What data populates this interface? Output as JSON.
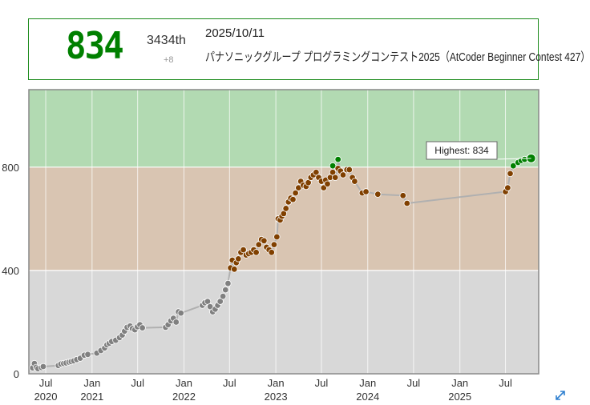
{
  "header": {
    "rating": "834",
    "place": "3434th",
    "diff": "+8",
    "date": "2025/10/11",
    "contest": "パナソニックグループ プログラミングコンテスト2025（AtCoder Beginner Contest 427）"
  },
  "chart_data": {
    "type": "line",
    "title": "",
    "ylim": [
      0,
      1100
    ],
    "y_ticks": [
      0,
      400,
      800
    ],
    "x_range": [
      "2020-04-25",
      "2025-11-10"
    ],
    "x_ticks": [
      {
        "date": "2020-07-01",
        "label": "Jul",
        "year": "2020"
      },
      {
        "date": "2021-01-01",
        "label": "Jan",
        "year": "2021"
      },
      {
        "date": "2021-07-01",
        "label": "Jul",
        "year": ""
      },
      {
        "date": "2022-01-01",
        "label": "Jan",
        "year": "2022"
      },
      {
        "date": "2022-07-01",
        "label": "Jul",
        "year": ""
      },
      {
        "date": "2023-01-01",
        "label": "Jan",
        "year": "2023"
      },
      {
        "date": "2023-07-01",
        "label": "Jul",
        "year": ""
      },
      {
        "date": "2024-01-01",
        "label": "Jan",
        "year": "2024"
      },
      {
        "date": "2024-07-01",
        "label": "Jul",
        "year": ""
      },
      {
        "date": "2025-01-01",
        "label": "Jan",
        "year": "2025"
      },
      {
        "date": "2025-07-01",
        "label": "Jul",
        "year": ""
      }
    ],
    "bands": [
      {
        "from": 0,
        "to": 400,
        "color": "#d8d8d8"
      },
      {
        "from": 400,
        "to": 800,
        "color": "#d9c5b2"
      },
      {
        "from": 800,
        "to": 1100,
        "color": "#b2dab2"
      }
    ],
    "grid": true,
    "highest_label": "Highest: 834",
    "colors": {
      "gray": "#808080",
      "brown": "#804000",
      "green": "#008000"
    },
    "series": [
      {
        "values": [
          [
            "2020-05-10",
            23
          ],
          [
            "2020-05-17",
            40
          ],
          [
            "2020-05-24",
            25
          ],
          [
            "2020-05-31",
            20
          ],
          [
            "2020-06-14",
            24
          ],
          [
            "2020-06-21",
            28
          ],
          [
            "2020-08-20",
            32
          ],
          [
            "2020-08-30",
            38
          ],
          [
            "2020-09-10",
            40
          ],
          [
            "2020-09-20",
            42
          ],
          [
            "2020-10-01",
            45
          ],
          [
            "2020-10-10",
            47
          ],
          [
            "2020-10-20",
            50
          ],
          [
            "2020-11-01",
            55
          ],
          [
            "2020-11-15",
            60
          ],
          [
            "2020-12-01",
            72
          ],
          [
            "2020-12-15",
            75
          ],
          [
            "2021-01-20",
            80
          ],
          [
            "2021-02-05",
            90
          ],
          [
            "2021-02-20",
            100
          ],
          [
            "2021-03-01",
            112
          ],
          [
            "2021-03-10",
            118
          ],
          [
            "2021-03-20",
            125
          ],
          [
            "2021-04-05",
            130
          ],
          [
            "2021-04-20",
            140
          ],
          [
            "2021-05-01",
            150
          ],
          [
            "2021-05-10",
            165
          ],
          [
            "2021-05-20",
            180
          ],
          [
            "2021-06-01",
            185
          ],
          [
            "2021-06-10",
            175
          ],
          [
            "2021-06-20",
            170
          ],
          [
            "2021-06-30",
            182
          ],
          [
            "2021-07-10",
            190
          ],
          [
            "2021-07-20",
            178
          ],
          [
            "2021-10-20",
            180
          ],
          [
            "2021-10-30",
            190
          ],
          [
            "2021-11-10",
            205
          ],
          [
            "2021-11-20",
            215
          ],
          [
            "2021-12-01",
            200
          ],
          [
            "2021-12-10",
            240
          ],
          [
            "2021-12-20",
            235
          ],
          [
            "2022-03-15",
            265
          ],
          [
            "2022-03-25",
            275
          ],
          [
            "2022-04-05",
            280
          ],
          [
            "2022-04-15",
            260
          ],
          [
            "2022-04-25",
            240
          ],
          [
            "2022-05-05",
            250
          ],
          [
            "2022-05-15",
            265
          ],
          [
            "2022-05-25",
            280
          ],
          [
            "2022-06-05",
            300
          ],
          [
            "2022-06-15",
            325
          ],
          [
            "2022-06-25",
            350
          ]
        ]
      },
      {
        "values": [
          [
            "2022-07-05",
            410
          ],
          [
            "2022-07-12",
            440
          ],
          [
            "2022-07-20",
            405
          ],
          [
            "2022-07-28",
            430
          ],
          [
            "2022-08-05",
            445
          ],
          [
            "2022-08-15",
            470
          ],
          [
            "2022-08-25",
            480
          ],
          [
            "2022-09-05",
            460
          ],
          [
            "2022-09-15",
            465
          ],
          [
            "2022-09-25",
            470
          ],
          [
            "2022-10-05",
            480
          ],
          [
            "2022-10-15",
            470
          ],
          [
            "2022-10-25",
            500
          ],
          [
            "2022-11-05",
            520
          ],
          [
            "2022-11-15",
            515
          ],
          [
            "2022-11-25",
            490
          ],
          [
            "2022-12-05",
            480
          ],
          [
            "2022-12-15",
            470
          ],
          [
            "2022-12-25",
            500
          ],
          [
            "2023-01-05",
            530
          ],
          [
            "2023-01-10",
            600
          ],
          [
            "2023-01-18",
            595
          ],
          [
            "2023-01-25",
            610
          ],
          [
            "2023-02-01",
            620
          ],
          [
            "2023-02-10",
            640
          ],
          [
            "2023-02-20",
            665
          ],
          [
            "2023-03-01",
            680
          ],
          [
            "2023-03-10",
            675
          ],
          [
            "2023-03-20",
            700
          ],
          [
            "2023-04-01",
            720
          ],
          [
            "2023-04-10",
            745
          ],
          [
            "2023-04-20",
            730
          ],
          [
            "2023-05-01",
            725
          ],
          [
            "2023-05-10",
            740
          ],
          [
            "2023-05-20",
            760
          ],
          [
            "2023-05-30",
            770
          ],
          [
            "2023-06-10",
            780
          ],
          [
            "2023-06-20",
            760
          ],
          [
            "2023-07-01",
            745
          ],
          [
            "2023-07-10",
            720
          ],
          [
            "2023-07-18",
            750
          ],
          [
            "2023-07-25",
            735
          ],
          [
            "2023-08-05",
            760
          ],
          [
            "2023-08-15",
            780
          ],
          [
            "2023-08-25",
            760
          ],
          [
            "2023-09-05",
            795
          ],
          [
            "2023-09-15",
            785
          ],
          [
            "2023-09-25",
            770
          ],
          [
            "2023-10-10",
            790
          ],
          [
            "2023-10-20",
            790
          ],
          [
            "2023-11-01",
            760
          ],
          [
            "2023-11-10",
            745
          ],
          [
            "2023-12-10",
            700
          ],
          [
            "2023-12-25",
            705
          ],
          [
            "2024-02-10",
            695
          ],
          [
            "2024-05-20",
            690
          ],
          [
            "2024-06-05",
            660
          ],
          [
            "2025-07-01",
            705
          ],
          [
            "2025-07-10",
            720
          ],
          [
            "2025-07-20",
            775
          ],
          [
            "2025-08-01",
            805
          ]
        ]
      },
      {
        "values": [
          [
            "2023-08-15",
            805
          ],
          [
            "2023-09-05",
            830
          ],
          [
            "2025-08-20",
            818
          ],
          [
            "2025-09-01",
            826
          ],
          [
            "2025-09-15",
            830
          ],
          [
            "2025-10-11",
            834
          ]
        ]
      }
    ]
  }
}
